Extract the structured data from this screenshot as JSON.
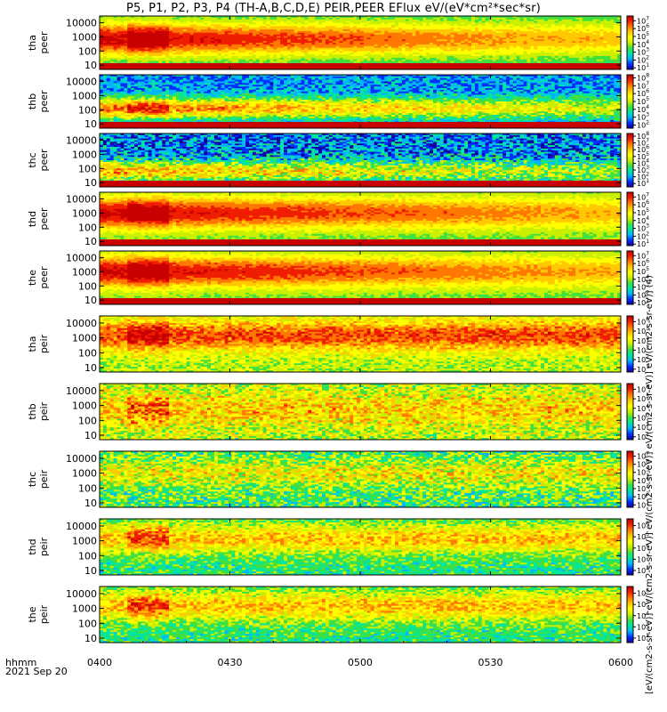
{
  "title": "P5, P1, P2, P3, P4 (TH-A,B,C,D,E) PEIR,PEER EFlux eV/(eV*cm²*sec*sr)",
  "time_axis_label": "hhmm",
  "date_label": "2021 Sep 20",
  "units_label": "[eV/(cm2-s-sr-eV)] eV/(cm2-s-sr-eV)] eV/(cm2-s-sr-eV)] eV/(cm2-s-sr-eV)] eV/(cm2-s-sr-eV)] (4)",
  "colors": {
    "colormap": [
      "#1400a0",
      "#0030ff",
      "#00b4ff",
      "#00e6a0",
      "#40e040",
      "#c8f000",
      "#ffff00",
      "#ffc800",
      "#ff7800",
      "#f01e00",
      "#c80000"
    ],
    "gap": "#c80000",
    "fill": "#000000"
  },
  "chart_data": {
    "type": "heatmap",
    "title": "P5, P1, P2, P3, P4 (TH-A,B,C,D,E) PEIR,PEER EFlux eV/(eV*cm²*sec*sr)",
    "x_axis": {
      "label": "hhmm",
      "range": [
        "04:00",
        "06:00"
      ],
      "ticks": [
        "0400",
        "0430",
        "0500",
        "0530",
        "0600"
      ],
      "date": "2021 Sep 20"
    },
    "y_scale": "log",
    "y_range": [
      5,
      30000
    ],
    "y_ticks": [
      "10",
      "100",
      "1000",
      "10000"
    ],
    "panels": [
      {
        "probe": "tha",
        "species": "peer",
        "cbar_exp": [
          1,
          2,
          3,
          4,
          5,
          6,
          7
        ],
        "cbar_min_exp": 0.8,
        "cbar_max_exp": 7.6,
        "band": [
          60,
          8000
        ],
        "peak_exp": 7.2,
        "base_exp": 3.2,
        "noise": 0.3,
        "red_gap": true,
        "spike": true
      },
      {
        "probe": "thb",
        "species": "peer",
        "cbar_exp": [
          2,
          3,
          4,
          5,
          6,
          7,
          8
        ],
        "cbar_min_exp": 1.6,
        "cbar_max_exp": 8.4,
        "band": [
          40,
          400
        ],
        "peak_exp": 7.0,
        "base_exp": 3.0,
        "noise": 0.8,
        "red_gap": true,
        "spike": true
      },
      {
        "probe": "thc",
        "species": "peer",
        "cbar_exp": [
          1,
          2,
          3,
          4,
          5,
          6,
          7,
          8
        ],
        "cbar_min_exp": 0.5,
        "cbar_max_exp": 8.4,
        "band": [
          20,
          200
        ],
        "peak_exp": 6.0,
        "base_exp": 2.0,
        "noise": 1.4,
        "red_gap": true,
        "spike": false
      },
      {
        "probe": "thd",
        "species": "peer",
        "cbar_exp": [
          1,
          2,
          3,
          4,
          5,
          6,
          7
        ],
        "cbar_min_exp": 0.8,
        "cbar_max_exp": 7.6,
        "band": [
          100,
          10000
        ],
        "peak_exp": 7.2,
        "base_exp": 3.6,
        "noise": 0.3,
        "red_gap": true,
        "spike": true
      },
      {
        "probe": "the",
        "species": "peer",
        "cbar_exp": [
          1,
          2,
          3,
          4,
          5,
          6,
          7
        ],
        "cbar_min_exp": 0.8,
        "cbar_max_exp": 7.6,
        "band": [
          100,
          10000
        ],
        "peak_exp": 7.2,
        "base_exp": 3.6,
        "noise": 0.3,
        "red_gap": true,
        "spike": true
      },
      {
        "probe": "tha",
        "species": "peir",
        "cbar_exp": [
          1,
          2,
          3,
          4,
          5,
          6
        ],
        "cbar_min_exp": 0.7,
        "cbar_max_exp": 6.6,
        "band": [
          200,
          10000
        ],
        "peak_exp": 5.6,
        "base_exp": 3.6,
        "noise": 0.6,
        "red_gap": false,
        "spike": true
      },
      {
        "probe": "thb",
        "species": "peir",
        "cbar_exp": [
          1,
          2,
          3,
          4,
          5,
          6
        ],
        "cbar_min_exp": 0.7,
        "cbar_max_exp": 6.6,
        "band": [
          50,
          5000
        ],
        "peak_exp": 4.6,
        "base_exp": 3.6,
        "noise": 1.0,
        "red_gap": false,
        "spike": true
      },
      {
        "probe": "thc",
        "species": "peir",
        "cbar_exp": [
          1,
          2,
          3,
          4,
          5,
          6,
          7
        ],
        "cbar_min_exp": 0.7,
        "cbar_max_exp": 7.6,
        "band": [
          200,
          5000
        ],
        "peak_exp": 4.8,
        "base_exp": 3.4,
        "noise": 1.2,
        "red_gap": false,
        "spike": false
      },
      {
        "probe": "thd",
        "species": "peir",
        "cbar_exp": [
          2,
          3,
          4,
          5,
          6
        ],
        "cbar_min_exp": 1.6,
        "cbar_max_exp": 6.6,
        "band": [
          200,
          10000
        ],
        "peak_exp": 5.0,
        "base_exp": 3.4,
        "noise": 0.6,
        "red_gap": false,
        "spike": true
      },
      {
        "probe": "the",
        "species": "peir",
        "cbar_exp": [
          2,
          3,
          4,
          5,
          6
        ],
        "cbar_min_exp": 1.6,
        "cbar_max_exp": 6.6,
        "band": [
          200,
          10000
        ],
        "peak_exp": 5.0,
        "base_exp": 3.4,
        "noise": 0.6,
        "red_gap": false,
        "spike": true
      }
    ]
  }
}
